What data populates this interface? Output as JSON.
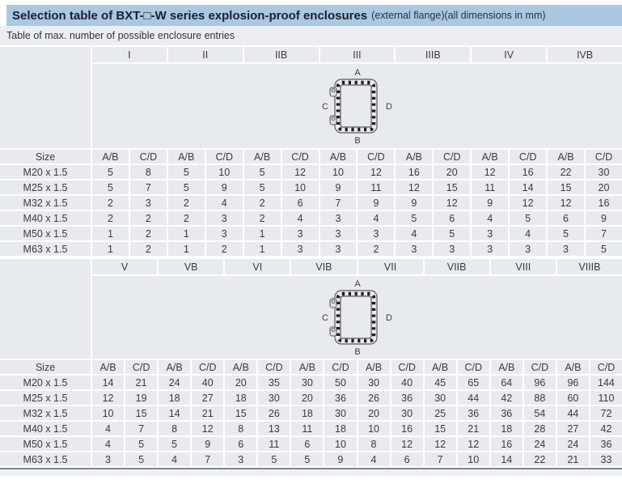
{
  "header": {
    "title_bold": "Selection table of BXT-□-W series explosion-proof enclosures",
    "title_note": "(external flange)(all dimensions in mm)",
    "subtitle": "Table of max. number of possible enclosure entries"
  },
  "diagram": {
    "top": "A",
    "bottom": "B",
    "left": "C",
    "right": "D"
  },
  "colors": {
    "title_bar": "#a9c8e1",
    "subtitle_band": "#eaeef3",
    "cell": "#e7eaef",
    "gridline": "#ffffff",
    "bottom_rule": "#7f8591"
  },
  "tables": [
    {
      "size_label": "Size",
      "pair": [
        "A/B",
        "C/D"
      ],
      "groups": [
        "I",
        "II",
        "IIB",
        "III",
        "IIIB",
        "IV",
        "IVB"
      ],
      "rows": [
        {
          "size": "M20 x 1.5",
          "values": [
            5,
            8,
            5,
            10,
            5,
            12,
            10,
            12,
            16,
            20,
            12,
            16,
            22,
            30
          ]
        },
        {
          "size": "M25 x 1.5",
          "values": [
            5,
            7,
            5,
            9,
            5,
            10,
            9,
            11,
            12,
            15,
            11,
            14,
            15,
            20
          ]
        },
        {
          "size": "M32 x 1.5",
          "values": [
            2,
            3,
            2,
            4,
            2,
            6,
            7,
            9,
            9,
            12,
            9,
            12,
            12,
            16
          ]
        },
        {
          "size": "M40 x 1.5",
          "values": [
            2,
            2,
            2,
            3,
            2,
            4,
            3,
            4,
            5,
            6,
            4,
            5,
            6,
            9
          ]
        },
        {
          "size": "M50 x 1.5",
          "values": [
            1,
            2,
            1,
            3,
            1,
            3,
            3,
            3,
            4,
            5,
            3,
            4,
            5,
            7
          ]
        },
        {
          "size": "M63 x 1.5",
          "values": [
            1,
            2,
            1,
            2,
            1,
            3,
            3,
            2,
            3,
            3,
            3,
            3,
            3,
            5
          ]
        }
      ]
    },
    {
      "size_label": "Size",
      "pair": [
        "A/B",
        "C/D"
      ],
      "groups": [
        "V",
        "VB",
        "VI",
        "VIB",
        "VII",
        "VIIB",
        "VIII",
        "VIIIB"
      ],
      "rows": [
        {
          "size": "M20 x 1.5",
          "values": [
            14,
            21,
            24,
            40,
            20,
            35,
            30,
            50,
            30,
            40,
            45,
            65,
            64,
            96,
            96,
            144
          ]
        },
        {
          "size": "M25 x 1.5",
          "values": [
            12,
            19,
            18,
            27,
            18,
            30,
            20,
            36,
            26,
            36,
            30,
            44,
            42,
            88,
            60,
            110
          ]
        },
        {
          "size": "M32 x 1.5",
          "values": [
            10,
            15,
            14,
            21,
            15,
            26,
            18,
            30,
            20,
            30,
            25,
            36,
            36,
            54,
            44,
            72
          ]
        },
        {
          "size": "M40 x 1.5",
          "values": [
            4,
            7,
            8,
            12,
            8,
            13,
            11,
            18,
            10,
            16,
            15,
            21,
            18,
            28,
            27,
            42
          ]
        },
        {
          "size": "M50 x 1.5",
          "values": [
            4,
            5,
            5,
            9,
            6,
            11,
            6,
            10,
            8,
            12,
            12,
            12,
            16,
            24,
            24,
            36
          ]
        },
        {
          "size": "M63 x 1.5",
          "values": [
            3,
            5,
            4,
            7,
            3,
            5,
            5,
            9,
            4,
            6,
            7,
            10,
            14,
            22,
            21,
            33
          ]
        }
      ]
    }
  ]
}
